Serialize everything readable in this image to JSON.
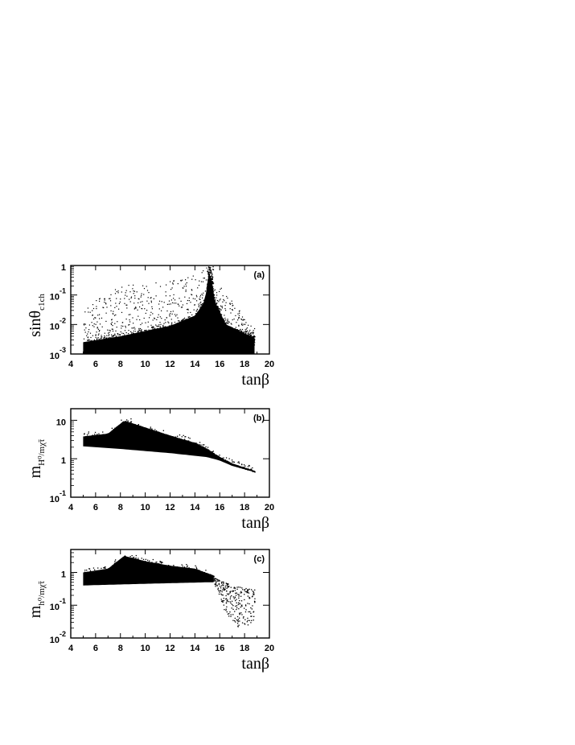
{
  "chart_data": [
    {
      "type": "scatter",
      "panel_label": "(a)",
      "xlabel": "tanβ",
      "ylabel": "sinθ",
      "ylabel_sub": "c1ch",
      "xscale": "linear",
      "yscale": "log",
      "xlim": [
        4,
        20
      ],
      "ylim": [
        0.001,
        1
      ],
      "x_ticks": [
        "4",
        "6",
        "8",
        "10",
        "12",
        "14",
        "16",
        "18",
        "20"
      ],
      "y_ticks": [
        {
          "base": "1",
          "exp": ""
        },
        {
          "base": "10",
          "exp": "-1"
        },
        {
          "base": "10",
          "exp": "-2"
        },
        {
          "base": "10",
          "exp": "-3"
        }
      ],
      "band": {
        "x_range": [
          5,
          18.8
        ],
        "peak_x": 15.2,
        "lower_edge": [
          [
            5,
            0.001
          ],
          [
            15.2,
            0.001
          ],
          [
            18.8,
            0.001
          ]
        ],
        "upper_edge": [
          [
            5,
            0.0025
          ],
          [
            8,
            0.004
          ],
          [
            10,
            0.006
          ],
          [
            12,
            0.009
          ],
          [
            14,
            0.02
          ],
          [
            14.8,
            0.06
          ],
          [
            15.2,
            1.0
          ],
          [
            15.6,
            0.06
          ],
          [
            16.5,
            0.01
          ],
          [
            18.5,
            0.004
          ]
        ]
      },
      "scatter_envelope": [
        [
          5,
          0.05
        ],
        [
          8,
          0.2
        ],
        [
          10,
          0.3
        ],
        [
          12,
          0.3
        ],
        [
          14,
          0.5
        ],
        [
          15,
          1.0
        ],
        [
          16,
          0.2
        ],
        [
          18.5,
          0.01
        ]
      ],
      "grid": false
    },
    {
      "type": "scatter",
      "panel_label": "(b)",
      "xlabel": "tanβ",
      "ylabel": "m",
      "ylabel_sub": "H⁰/mχ̃τ",
      "xscale": "linear",
      "yscale": "log",
      "xlim": [
        4,
        20
      ],
      "ylim": [
        0.1,
        20
      ],
      "x_ticks": [
        "4",
        "6",
        "8",
        "10",
        "12",
        "14",
        "16",
        "18",
        "20"
      ],
      "y_ticks": [
        {
          "base": "10",
          "exp": ""
        },
        {
          "base": "1",
          "exp": ""
        },
        {
          "base": "10",
          "exp": "-1"
        }
      ],
      "band": {
        "x_range": [
          5,
          18.8
        ],
        "lower_edge": [
          [
            5,
            2.1
          ],
          [
            8,
            1.8
          ],
          [
            12,
            1.4
          ],
          [
            15,
            1.1
          ],
          [
            16,
            0.9
          ],
          [
            17,
            0.65
          ],
          [
            18.8,
            0.45
          ]
        ],
        "upper_edge": [
          [
            5,
            3.8
          ],
          [
            7,
            4.5
          ],
          [
            8.3,
            9.8
          ],
          [
            10,
            6.5
          ],
          [
            12,
            4.0
          ],
          [
            14,
            2.6
          ],
          [
            15,
            1.8
          ],
          [
            16,
            1.1
          ],
          [
            17,
            0.75
          ],
          [
            18.8,
            0.48
          ]
        ]
      },
      "grid": false
    },
    {
      "type": "scatter",
      "panel_label": "(c)",
      "xlabel": "tanβ",
      "ylabel": "m",
      "ylabel_sub": "h⁰/mχ̃τ",
      "xscale": "linear",
      "yscale": "log",
      "xlim": [
        4,
        20
      ],
      "ylim": [
        0.01,
        5
      ],
      "x_ticks": [
        "4",
        "6",
        "8",
        "10",
        "12",
        "14",
        "16",
        "18",
        "20"
      ],
      "y_ticks": [
        {
          "base": "1",
          "exp": ""
        },
        {
          "base": "10",
          "exp": "-1"
        },
        {
          "base": "10",
          "exp": "-2"
        }
      ],
      "band": {
        "x_range": [
          5,
          15.5
        ],
        "lower_edge": [
          [
            5,
            0.4
          ],
          [
            10,
            0.45
          ],
          [
            15,
            0.5
          ],
          [
            15.5,
            0.5
          ]
        ],
        "upper_edge": [
          [
            5,
            1.0
          ],
          [
            7,
            1.3
          ],
          [
            8.3,
            3.2
          ],
          [
            10,
            2.2
          ],
          [
            12,
            1.6
          ],
          [
            14,
            1.3
          ],
          [
            15.5,
            0.8
          ]
        ]
      },
      "tail": {
        "x_range": [
          15.5,
          18.8
        ],
        "upper_edge": [
          [
            15.5,
            0.7
          ],
          [
            17,
            0.4
          ],
          [
            18.8,
            0.3
          ]
        ],
        "lower_edge": [
          [
            15.5,
            0.5
          ],
          [
            16.5,
            0.05
          ],
          [
            17.5,
            0.02
          ],
          [
            18.8,
            0.03
          ]
        ]
      },
      "grid": false
    }
  ]
}
